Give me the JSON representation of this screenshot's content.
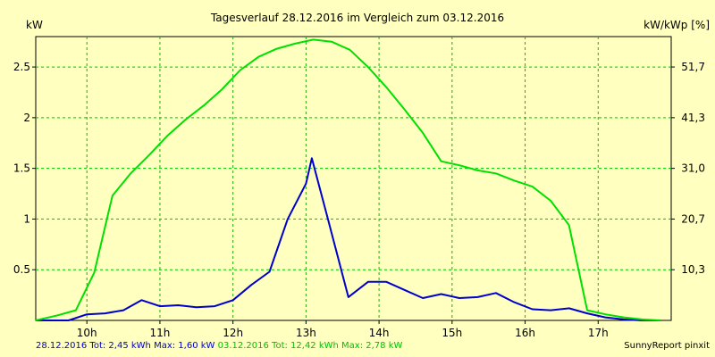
{
  "chart_data": {
    "type": "line",
    "title": "Tagesverlauf 28.12.2016 im Vergleich zum 03.12.2016",
    "ylabel_left": "kW",
    "ylabel_right": "kW/kWp [%]",
    "xlim": [
      9.3,
      18.0
    ],
    "ylim": [
      0,
      2.8
    ],
    "grid": true,
    "x_ticks": [
      10,
      11,
      12,
      13,
      14,
      15,
      16,
      17
    ],
    "x_tick_labels": [
      "10h",
      "11h",
      "12h",
      "13h",
      "14h",
      "15h",
      "16h",
      "17h"
    ],
    "y_ticks_left": [
      0.5,
      1,
      1.5,
      2,
      2.5
    ],
    "y_tick_labels_left": [
      "0.5",
      "1",
      "1.5",
      "2",
      "2.5"
    ],
    "y_tick_labels_right": [
      "10,3",
      "20,7",
      "31,0",
      "41,3",
      "51,7"
    ],
    "series": [
      {
        "name": "28.12.2016",
        "color": "#0000cc",
        "x": [
          9.3,
          9.5,
          9.75,
          10.0,
          10.25,
          10.5,
          10.75,
          11.0,
          11.25,
          11.5,
          11.75,
          12.0,
          12.25,
          12.5,
          12.75,
          13.0,
          13.08,
          13.3,
          13.58,
          13.85,
          14.1,
          14.35,
          14.6,
          14.85,
          15.1,
          15.35,
          15.6,
          15.85,
          16.1,
          16.35,
          16.6,
          16.85,
          17.1,
          17.35,
          17.6,
          17.85
        ],
        "y": [
          0,
          0,
          0,
          0.06,
          0.07,
          0.1,
          0.2,
          0.14,
          0.15,
          0.13,
          0.14,
          0.2,
          0.35,
          0.48,
          1.0,
          1.35,
          1.6,
          1.0,
          0.23,
          0.38,
          0.38,
          0.3,
          0.22,
          0.26,
          0.22,
          0.23,
          0.27,
          0.18,
          0.11,
          0.1,
          0.12,
          0.07,
          0.03,
          0.01,
          0,
          0
        ]
      },
      {
        "name": "03.12.2016",
        "color": "#00e000",
        "x": [
          9.3,
          9.6,
          9.85,
          10.1,
          10.35,
          10.6,
          10.85,
          11.1,
          11.35,
          11.6,
          11.85,
          12.1,
          12.35,
          12.6,
          12.85,
          13.1,
          13.35,
          13.6,
          13.85,
          14.1,
          14.35,
          14.6,
          14.85,
          15.1,
          15.35,
          15.6,
          15.85,
          16.1,
          16.35,
          16.6,
          16.85,
          17.1,
          17.35,
          17.6,
          17.85
        ],
        "y": [
          0,
          0.05,
          0.1,
          0.47,
          1.23,
          1.45,
          1.63,
          1.82,
          1.98,
          2.12,
          2.28,
          2.47,
          2.6,
          2.68,
          2.73,
          2.77,
          2.75,
          2.67,
          2.5,
          2.3,
          2.08,
          1.85,
          1.57,
          1.53,
          1.48,
          1.45,
          1.38,
          1.32,
          1.18,
          0.94,
          0.1,
          0.06,
          0.03,
          0.01,
          0
        ]
      }
    ]
  },
  "footer": {
    "series1_text": "28.12.2016 Tot: 2,45 kWh Max: 1,60 kW",
    "series2_text": "03.12.2016 Tot: 12,42 kWh Max: 2,78 kW",
    "credit": "SunnyReport pinxit"
  }
}
